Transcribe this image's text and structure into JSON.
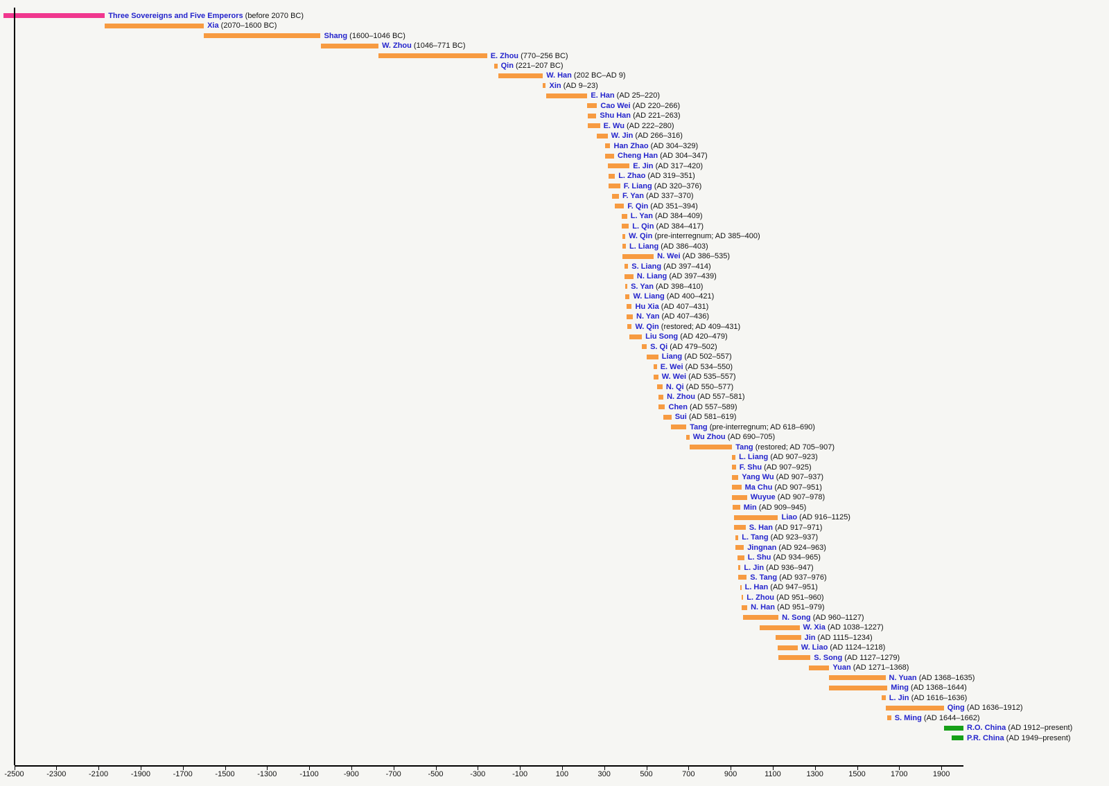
{
  "palette": {
    "background": "#F6F6F3",
    "orange": "#F79B41",
    "pink": "#F0378E",
    "green": "#17A018",
    "name_color": "#2424CC",
    "period_color": "#111111",
    "axis_color": "#000000"
  },
  "chart_data": {
    "type": "bar",
    "variant": "horizontal-timeline-gantt",
    "title": "",
    "xlabel": "",
    "ylabel": "",
    "xlim": [
      -2500,
      2005
    ],
    "grid": false,
    "legend": "none",
    "x_ticks": [
      {
        "v": -2500,
        "t": "-2500"
      },
      {
        "v": -2300,
        "t": "-2300"
      },
      {
        "v": -2100,
        "t": "-2100"
      },
      {
        "v": -1900,
        "t": "-1900"
      },
      {
        "v": -1700,
        "t": "-1700"
      },
      {
        "v": -1500,
        "t": "-1500"
      },
      {
        "v": -1300,
        "t": "-1300"
      },
      {
        "v": -1100,
        "t": "-1100"
      },
      {
        "v": -900,
        "t": "-900"
      },
      {
        "v": -700,
        "t": "-700"
      },
      {
        "v": -500,
        "t": "-500"
      },
      {
        "v": -300,
        "t": "-300"
      },
      {
        "v": -100,
        "t": "-100"
      },
      {
        "v": 100,
        "t": "100"
      },
      {
        "v": 300,
        "t": "300"
      },
      {
        "v": 500,
        "t": "500"
      },
      {
        "v": 700,
        "t": "700"
      },
      {
        "v": 900,
        "t": "900"
      },
      {
        "v": 1100,
        "t": "1100"
      },
      {
        "v": 1300,
        "t": "1300"
      },
      {
        "v": 1500,
        "t": "1500"
      },
      {
        "v": 1700,
        "t": "1700"
      },
      {
        "v": 1900,
        "t": "1900"
      }
    ],
    "rows": [
      {
        "name": "Three Sovereigns and Five Emperors",
        "period": "(before 2070 BC)",
        "start": -2550,
        "end": -2070,
        "color": "pink"
      },
      {
        "name": "Xia",
        "period": "(2070–1600 BC)",
        "start": -2070,
        "end": -1600,
        "color": "orange"
      },
      {
        "name": "Shang",
        "period": "(1600–1046 BC)",
        "start": -1600,
        "end": -1046,
        "color": "orange"
      },
      {
        "name": "W. Zhou",
        "period": "(1046–771 BC)",
        "start": -1046,
        "end": -771,
        "color": "orange"
      },
      {
        "name": "E. Zhou",
        "period": "(770–256 BC)",
        "start": -770,
        "end": -256,
        "color": "orange"
      },
      {
        "name": "Qin",
        "period": "(221–207 BC)",
        "start": -221,
        "end": -207,
        "color": "orange"
      },
      {
        "name": "W. Han",
        "period": "(202 BC–AD 9)",
        "start": -202,
        "end": 9,
        "color": "orange"
      },
      {
        "name": "Xin",
        "period": "(AD 9–23)",
        "start": 9,
        "end": 23,
        "color": "orange"
      },
      {
        "name": "E. Han",
        "period": "(AD 25–220)",
        "start": 25,
        "end": 220,
        "color": "orange"
      },
      {
        "name": "Cao Wei",
        "period": "(AD 220–266)",
        "start": 220,
        "end": 266,
        "color": "orange"
      },
      {
        "name": "Shu Han",
        "period": "(AD 221–263)",
        "start": 221,
        "end": 263,
        "color": "orange"
      },
      {
        "name": "E. Wu",
        "period": "(AD 222–280)",
        "start": 222,
        "end": 280,
        "color": "orange"
      },
      {
        "name": "W. Jin",
        "period": "(AD 266–316)",
        "start": 266,
        "end": 316,
        "color": "orange"
      },
      {
        "name": "Han Zhao",
        "period": "(AD 304–329)",
        "start": 304,
        "end": 329,
        "color": "orange"
      },
      {
        "name": "Cheng Han",
        "period": "(AD 304–347)",
        "start": 304,
        "end": 347,
        "color": "orange"
      },
      {
        "name": "E. Jin",
        "period": "(AD 317–420)",
        "start": 317,
        "end": 420,
        "color": "orange"
      },
      {
        "name": "L. Zhao",
        "period": "(AD 319–351)",
        "start": 319,
        "end": 351,
        "color": "orange"
      },
      {
        "name": "F. Liang",
        "period": "(AD 320–376)",
        "start": 320,
        "end": 376,
        "color": "orange"
      },
      {
        "name": "F. Yan",
        "period": "(AD 337–370)",
        "start": 337,
        "end": 370,
        "color": "orange"
      },
      {
        "name": "F. Qin",
        "period": "(AD 351–394)",
        "start": 351,
        "end": 394,
        "color": "orange"
      },
      {
        "name": "L. Yan",
        "period": "(AD 384–409)",
        "start": 384,
        "end": 409,
        "color": "orange"
      },
      {
        "name": "L. Qin",
        "period": "(AD 384–417)",
        "start": 384,
        "end": 417,
        "color": "orange"
      },
      {
        "name": "W. Qin",
        "period": "(pre-interregnum; AD 385–400)",
        "start": 385,
        "end": 400,
        "color": "orange"
      },
      {
        "name": "L. Liang",
        "period": "(AD 386–403)",
        "start": 386,
        "end": 403,
        "color": "orange"
      },
      {
        "name": "N. Wei",
        "period": "(AD 386–535)",
        "start": 386,
        "end": 535,
        "color": "orange"
      },
      {
        "name": "S. Liang",
        "period": "(AD 397–414)",
        "start": 397,
        "end": 414,
        "color": "orange"
      },
      {
        "name": "N. Liang",
        "period": "(AD 397–439)",
        "start": 397,
        "end": 439,
        "color": "orange"
      },
      {
        "name": "S. Yan",
        "period": "(AD 398–410)",
        "start": 398,
        "end": 410,
        "color": "orange"
      },
      {
        "name": "W. Liang",
        "period": "(AD 400–421)",
        "start": 400,
        "end": 421,
        "color": "orange"
      },
      {
        "name": "Hu Xia",
        "period": "(AD 407–431)",
        "start": 407,
        "end": 431,
        "color": "orange"
      },
      {
        "name": "N. Yan",
        "period": "(AD 407–436)",
        "start": 407,
        "end": 436,
        "color": "orange"
      },
      {
        "name": "W. Qin",
        "period": "(restored; AD 409–431)",
        "start": 409,
        "end": 431,
        "color": "orange"
      },
      {
        "name": "Liu Song",
        "period": "(AD 420–479)",
        "start": 420,
        "end": 479,
        "color": "orange"
      },
      {
        "name": "S. Qi",
        "period": "(AD 479–502)",
        "start": 479,
        "end": 502,
        "color": "orange"
      },
      {
        "name": "Liang",
        "period": "(AD 502–557)",
        "start": 502,
        "end": 557,
        "color": "orange"
      },
      {
        "name": "E. Wei",
        "period": "(AD 534–550)",
        "start": 534,
        "end": 550,
        "color": "orange"
      },
      {
        "name": "W. Wei",
        "period": "(AD 535–557)",
        "start": 535,
        "end": 557,
        "color": "orange"
      },
      {
        "name": "N. Qi",
        "period": "(AD 550–577)",
        "start": 550,
        "end": 577,
        "color": "orange"
      },
      {
        "name": "N. Zhou",
        "period": "(AD 557–581)",
        "start": 557,
        "end": 581,
        "color": "orange"
      },
      {
        "name": "Chen",
        "period": "(AD 557–589)",
        "start": 557,
        "end": 589,
        "color": "orange"
      },
      {
        "name": "Sui",
        "period": "(AD 581–619)",
        "start": 581,
        "end": 619,
        "color": "orange"
      },
      {
        "name": "Tang",
        "period": "(pre-interregnum; AD 618–690)",
        "start": 618,
        "end": 690,
        "color": "orange"
      },
      {
        "name": "Wu Zhou",
        "period": "(AD 690–705)",
        "start": 690,
        "end": 705,
        "color": "orange"
      },
      {
        "name": "Tang",
        "period": "(restored; AD 705–907)",
        "start": 705,
        "end": 907,
        "color": "orange"
      },
      {
        "name": "L. Liang",
        "period": "(AD 907–923)",
        "start": 907,
        "end": 923,
        "color": "orange"
      },
      {
        "name": "F. Shu",
        "period": "(AD 907–925)",
        "start": 907,
        "end": 925,
        "color": "orange"
      },
      {
        "name": "Yang Wu",
        "period": "(AD 907–937)",
        "start": 907,
        "end": 937,
        "color": "orange"
      },
      {
        "name": "Ma Chu",
        "period": "(AD 907–951)",
        "start": 907,
        "end": 951,
        "color": "orange"
      },
      {
        "name": "Wuyue",
        "period": "(AD 907–978)",
        "start": 907,
        "end": 978,
        "color": "orange"
      },
      {
        "name": "Min",
        "period": "(AD 909–945)",
        "start": 909,
        "end": 945,
        "color": "orange"
      },
      {
        "name": "Liao",
        "period": "(AD 916–1125)",
        "start": 916,
        "end": 1125,
        "color": "orange"
      },
      {
        "name": "S. Han",
        "period": "(AD 917–971)",
        "start": 917,
        "end": 971,
        "color": "orange"
      },
      {
        "name": "L. Tang",
        "period": "(AD 923–937)",
        "start": 923,
        "end": 937,
        "color": "orange"
      },
      {
        "name": "Jingnan",
        "period": "(AD 924–963)",
        "start": 924,
        "end": 963,
        "color": "orange"
      },
      {
        "name": "L. Shu",
        "period": "(AD 934–965)",
        "start": 934,
        "end": 965,
        "color": "orange"
      },
      {
        "name": "L. Jin",
        "period": "(AD 936–947)",
        "start": 936,
        "end": 947,
        "color": "orange"
      },
      {
        "name": "S. Tang",
        "period": "(AD 937–976)",
        "start": 937,
        "end": 976,
        "color": "orange"
      },
      {
        "name": "L. Han",
        "period": "(AD 947–951)",
        "start": 947,
        "end": 951,
        "color": "orange"
      },
      {
        "name": "L. Zhou",
        "period": "(AD 951–960)",
        "start": 951,
        "end": 960,
        "color": "orange"
      },
      {
        "name": "N. Han",
        "period": "(AD 951–979)",
        "start": 951,
        "end": 979,
        "color": "orange"
      },
      {
        "name": "N. Song",
        "period": "(AD 960–1127)",
        "start": 960,
        "end": 1127,
        "color": "orange"
      },
      {
        "name": "W. Xia",
        "period": "(AD 1038–1227)",
        "start": 1038,
        "end": 1227,
        "color": "orange"
      },
      {
        "name": "Jin",
        "period": "(AD 1115–1234)",
        "start": 1115,
        "end": 1234,
        "color": "orange"
      },
      {
        "name": "W. Liao",
        "period": "(AD 1124–1218)",
        "start": 1124,
        "end": 1218,
        "color": "orange"
      },
      {
        "name": "S. Song",
        "period": "(AD 1127–1279)",
        "start": 1127,
        "end": 1279,
        "color": "orange"
      },
      {
        "name": "Yuan",
        "period": "(AD 1271–1368)",
        "start": 1271,
        "end": 1368,
        "color": "orange"
      },
      {
        "name": "N. Yuan",
        "period": "(AD 1368–1635)",
        "start": 1368,
        "end": 1635,
        "color": "orange"
      },
      {
        "name": "Ming",
        "period": "(AD 1368–1644)",
        "start": 1368,
        "end": 1644,
        "color": "orange"
      },
      {
        "name": "L. Jin",
        "period": "(AD 1616–1636)",
        "start": 1616,
        "end": 1636,
        "color": "orange"
      },
      {
        "name": "Qing",
        "period": "(AD 1636–1912)",
        "start": 1636,
        "end": 1912,
        "color": "orange"
      },
      {
        "name": "S. Ming",
        "period": "(AD 1644–1662)",
        "start": 1644,
        "end": 1662,
        "color": "orange"
      },
      {
        "name": "R.O. China",
        "period": "(AD 1912–present)",
        "start": 1912,
        "end": 2005,
        "color": "green"
      },
      {
        "name": "P.R. China",
        "period": "(AD 1949–present)",
        "start": 1949,
        "end": 2005,
        "color": "green"
      }
    ]
  }
}
